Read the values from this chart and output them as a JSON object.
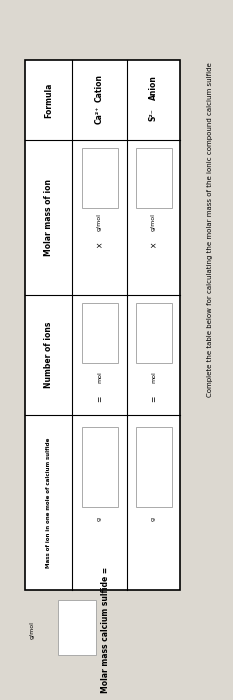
{
  "title": "Complete the table below for calculating the molar mass of the ionic compound calcium sulfide",
  "bg_color": "#dcd8d0",
  "table_bg": "#ffffff",
  "header_col": [
    "Formula",
    "Molar mass of ion",
    "Number of ions",
    "Mass of ion in one mole of calcium sulfide"
  ],
  "row_labels": [
    "Cation",
    "Anion"
  ],
  "formulas": [
    "Ca²⁺",
    "S²⁻"
  ],
  "units_molar": "g/mol",
  "units_number": "mol",
  "units_mass": "g",
  "multiply_symbol": "×",
  "equals_symbol": "=",
  "footer_label": "Molar mass calcium sulfide =",
  "footer_unit": "g/mol",
  "box_fill": "#ffffff",
  "box_border": "#aaaaaa",
  "title_fontsize": 5.0,
  "label_fontsize": 5.5,
  "small_fontsize": 4.5
}
